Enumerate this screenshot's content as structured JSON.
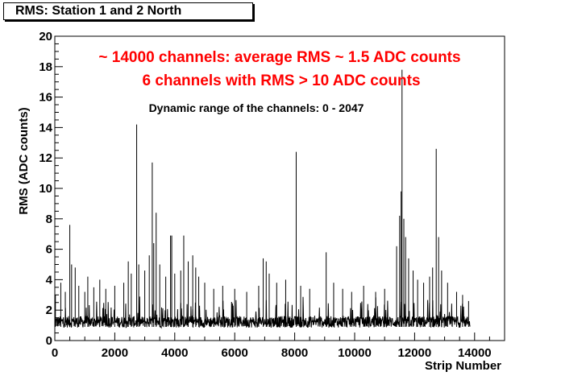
{
  "title_box": {
    "text": "RMS: Station 1 and 2 North"
  },
  "chart_data": {
    "type": "line",
    "title": "RMS: Station 1 and 2 North",
    "xlabel": "Strip Number",
    "ylabel": "RMS (ADC counts)",
    "xlim": [
      0,
      15000
    ],
    "ylim": [
      0,
      20
    ],
    "x_ticks": [
      0,
      2000,
      4000,
      6000,
      8000,
      10000,
      12000,
      14000
    ],
    "y_ticks": [
      0,
      2,
      4,
      6,
      8,
      10,
      12,
      14,
      16,
      18,
      20
    ],
    "grid": false,
    "line_color": "#000000",
    "annotation_color": "#ff0000",
    "annotations": [
      "~ 14000 channels: average RMS ~ 1.5 ADC counts",
      "6 channels with RMS > 10 ADC counts",
      "Dynamic range of the channels: 0 - 2047"
    ],
    "series": [
      {
        "x_range": [
          0,
          13850
        ],
        "baseline_rms": 1.2,
        "peaks": [
          [
            20,
            3.0
          ],
          [
            200,
            3.8
          ],
          [
            350,
            3.2
          ],
          [
            500,
            7.6
          ],
          [
            560,
            5.0
          ],
          [
            680,
            4.8
          ],
          [
            800,
            3.6
          ],
          [
            1000,
            3.2
          ],
          [
            1100,
            4.2
          ],
          [
            1300,
            3.5
          ],
          [
            1500,
            4.0
          ],
          [
            1700,
            3.4
          ],
          [
            2000,
            3.6
          ],
          [
            2300,
            3.8
          ],
          [
            2450,
            5.2
          ],
          [
            2550,
            4.4
          ],
          [
            2730,
            14.2
          ],
          [
            2800,
            5.0
          ],
          [
            3000,
            4.6
          ],
          [
            3150,
            5.6
          ],
          [
            3250,
            11.7
          ],
          [
            3300,
            6.4
          ],
          [
            3380,
            8.4
          ],
          [
            3500,
            5.0
          ],
          [
            3700,
            4.2
          ],
          [
            3860,
            6.9
          ],
          [
            3900,
            6.9
          ],
          [
            4000,
            4.4
          ],
          [
            4200,
            4.6
          ],
          [
            4300,
            6.9
          ],
          [
            4450,
            5.2
          ],
          [
            4600,
            5.6
          ],
          [
            4700,
            4.8
          ],
          [
            4800,
            4.2
          ],
          [
            5000,
            3.8
          ],
          [
            5300,
            3.4
          ],
          [
            5600,
            3.6
          ],
          [
            6000,
            3.4
          ],
          [
            6400,
            3.2
          ],
          [
            6800,
            3.6
          ],
          [
            6950,
            5.4
          ],
          [
            7050,
            5.2
          ],
          [
            7150,
            4.4
          ],
          [
            7400,
            3.8
          ],
          [
            7700,
            4.0
          ],
          [
            8050,
            12.4
          ],
          [
            8200,
            3.6
          ],
          [
            8500,
            3.4
          ],
          [
            9050,
            5.8
          ],
          [
            9300,
            3.8
          ],
          [
            9600,
            3.4
          ],
          [
            9900,
            3.2
          ],
          [
            10300,
            3.6
          ],
          [
            10700,
            3.2
          ],
          [
            11000,
            3.4
          ],
          [
            11400,
            6.2
          ],
          [
            11500,
            8.2
          ],
          [
            11550,
            9.8
          ],
          [
            11580,
            17.8
          ],
          [
            11640,
            8.0
          ],
          [
            11700,
            6.8
          ],
          [
            11800,
            5.4
          ],
          [
            11950,
            4.6
          ],
          [
            12100,
            4.0
          ],
          [
            12300,
            3.8
          ],
          [
            12500,
            4.2
          ],
          [
            12600,
            4.8
          ],
          [
            12720,
            12.6
          ],
          [
            12800,
            6.8
          ],
          [
            12900,
            4.6
          ],
          [
            13100,
            3.8
          ],
          [
            13400,
            3.2
          ],
          [
            13600,
            3.0
          ],
          [
            13800,
            2.6
          ]
        ]
      }
    ]
  }
}
